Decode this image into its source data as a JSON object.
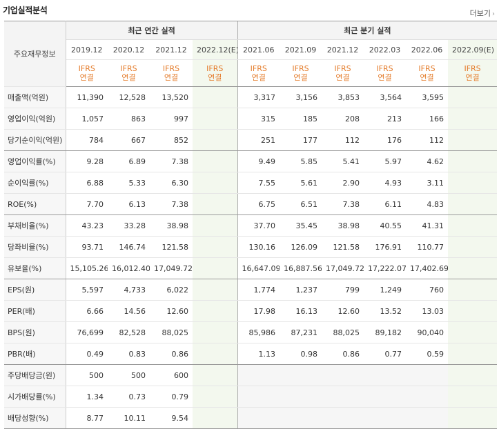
{
  "header": {
    "title": "기업실적분석",
    "more": "더보기",
    "more_icon": "arrow-right-icon"
  },
  "table": {
    "label_header": "주요재무정보",
    "annual_group": "최근 연간 실적",
    "quarter_group": "최근 분기 실적",
    "annual_periods": [
      "2019.12",
      "2020.12",
      "2021.12",
      "2022.12(E)"
    ],
    "quarter_periods": [
      "2021.06",
      "2021.09",
      "2021.12",
      "2022.03",
      "2022.06",
      "2022.09(E)"
    ],
    "ifrs_line1": "IFRS",
    "ifrs_line2": "연결",
    "rows": [
      {
        "label": "매출액(억원)",
        "annual": [
          "11,390",
          "12,528",
          "13,520",
          ""
        ],
        "quarter": [
          "3,317",
          "3,156",
          "3,853",
          "3,564",
          "3,595",
          ""
        ]
      },
      {
        "label": "영업이익(억원)",
        "annual": [
          "1,057",
          "863",
          "997",
          ""
        ],
        "quarter": [
          "315",
          "185",
          "208",
          "213",
          "166",
          ""
        ]
      },
      {
        "label": "당기순이익(억원)",
        "annual": [
          "784",
          "667",
          "852",
          ""
        ],
        "quarter": [
          "251",
          "177",
          "112",
          "176",
          "112",
          ""
        ]
      },
      {
        "label": "영업이익률(%)",
        "annual": [
          "9.28",
          "6.89",
          "7.38",
          ""
        ],
        "quarter": [
          "9.49",
          "5.85",
          "5.41",
          "5.97",
          "4.62",
          ""
        ]
      },
      {
        "label": "순이익률(%)",
        "annual": [
          "6.88",
          "5.33",
          "6.30",
          ""
        ],
        "quarter": [
          "7.55",
          "5.61",
          "2.90",
          "4.93",
          "3.11",
          ""
        ]
      },
      {
        "label": "ROE(%)",
        "annual": [
          "7.70",
          "6.13",
          "7.38",
          ""
        ],
        "quarter": [
          "6.75",
          "6.51",
          "7.38",
          "6.11",
          "4.83",
          ""
        ]
      },
      {
        "label": "부채비율(%)",
        "annual": [
          "43.23",
          "33.28",
          "38.98",
          ""
        ],
        "quarter": [
          "37.70",
          "35.45",
          "38.98",
          "40.55",
          "41.31",
          ""
        ]
      },
      {
        "label": "당좌비율(%)",
        "annual": [
          "93.71",
          "146.74",
          "121.58",
          ""
        ],
        "quarter": [
          "130.16",
          "126.09",
          "121.58",
          "176.91",
          "110.77",
          ""
        ]
      },
      {
        "label": "유보율(%)",
        "annual": [
          "15,105.26",
          "16,012.40",
          "17,049.72",
          ""
        ],
        "quarter": [
          "16,647.09",
          "16,887.56",
          "17,049.72",
          "17,222.07",
          "17,402.69",
          ""
        ]
      },
      {
        "label": "EPS(원)",
        "annual": [
          "5,597",
          "4,733",
          "6,022",
          ""
        ],
        "quarter": [
          "1,774",
          "1,237",
          "799",
          "1,249",
          "760",
          ""
        ]
      },
      {
        "label": "PER(배)",
        "annual": [
          "6.66",
          "14.56",
          "12.60",
          ""
        ],
        "quarter": [
          "17.98",
          "16.13",
          "12.60",
          "13.52",
          "13.03",
          ""
        ]
      },
      {
        "label": "BPS(원)",
        "annual": [
          "76,699",
          "82,528",
          "88,025",
          ""
        ],
        "quarter": [
          "85,986",
          "87,231",
          "88,025",
          "89,182",
          "90,040",
          ""
        ]
      },
      {
        "label": "PBR(배)",
        "annual": [
          "0.49",
          "0.83",
          "0.86",
          ""
        ],
        "quarter": [
          "1.13",
          "0.98",
          "0.86",
          "0.77",
          "0.59",
          ""
        ]
      },
      {
        "label": "주당배당금(원)",
        "annual": [
          "500",
          "500",
          "600",
          ""
        ],
        "quarter": [
          "",
          "",
          "",
          "",
          "",
          ""
        ]
      },
      {
        "label": "시가배당률(%)",
        "annual": [
          "1.34",
          "0.73",
          "0.79",
          ""
        ],
        "quarter": [
          "",
          "",
          "",
          "",
          "",
          ""
        ]
      },
      {
        "label": "배당성향(%)",
        "annual": [
          "8.77",
          "10.11",
          "9.54",
          ""
        ],
        "quarter": [
          "",
          "",
          "",
          "",
          "",
          ""
        ]
      }
    ]
  }
}
